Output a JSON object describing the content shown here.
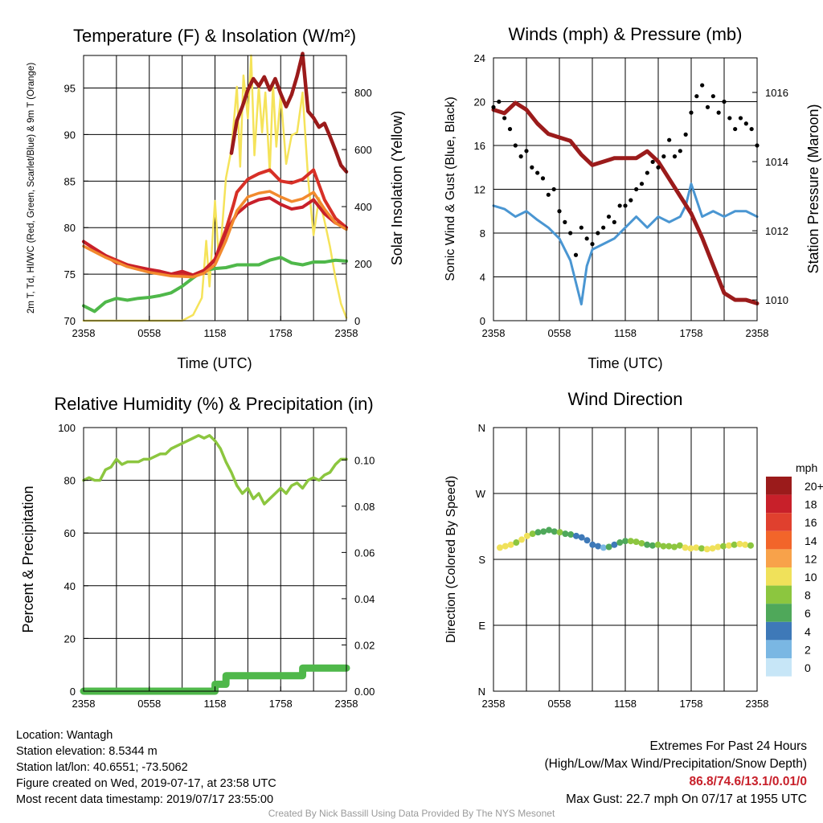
{
  "info": {
    "location": "Location: Wantagh",
    "elevation": "Station elevation: 8.5344 m",
    "latlon": "Station lat/lon: 40.6551; -73.5062",
    "created": "Figure created on Wed, 2019-07-17, at 23:58 UTC",
    "recent": "Most recent data timestamp: 2019/07/17 23:55:00"
  },
  "extremes": {
    "title": "Extremes For Past 24 Hours",
    "subtitle": "(High/Low/Max Wind/Precipitation/Snow Depth)",
    "values": "86.8/74.6/13.1/0.01/0",
    "gust": "Max Gust: 22.7 mph On 07/17 at 1955 UTC"
  },
  "credit": "Created By Nick Bassill Using Data Provided By The NYS Mesonet",
  "colors": {
    "temp_red": "#c8202a",
    "dewpoint_green": "#4fb84a",
    "heat_index_scarlet": "#d73027",
    "temp_9m_orange": "#f28a2e",
    "insolation_yellow": "#f5e35a",
    "wind_blue": "#4a96d2",
    "gust_black": "#000000",
    "pressure_maroon": "#9b1b1b",
    "rh_lightgreen": "#8cc63f",
    "precip_green": "#4fb84a"
  },
  "chart_data": [
    {
      "type": "line",
      "title": "Temperature (F) & Insolation (W/m²)",
      "xlabel": "Time (UTC)",
      "ylabel": "2m T, Td, HI/WC (Red, Green, Scarlet/Blue) & 9m T (Orange)",
      "ylabel2": "Solar Insolation (Yellow)",
      "x_ticks": [
        "2358",
        "0558",
        "1158",
        "1758",
        "2358"
      ],
      "y_ticks": [
        70,
        75,
        80,
        85,
        90,
        95
      ],
      "y2_ticks": [
        0,
        200,
        400,
        600,
        800
      ],
      "xlim": [
        0,
        24
      ],
      "ylim": [
        70,
        98.5
      ],
      "y2lim": [
        0,
        930
      ],
      "grid": true,
      "series": [
        {
          "name": "2m T (Red)",
          "axis": "left",
          "x": [
            0,
            1,
            2,
            3,
            4,
            5,
            6,
            7,
            8,
            9,
            10,
            11,
            12,
            13,
            14,
            15,
            16,
            17,
            18,
            19,
            20,
            21,
            22,
            23,
            24
          ],
          "y": [
            78.5,
            77.7,
            77.0,
            76.2,
            76.0,
            75.7,
            75.5,
            75.3,
            75.0,
            75.3,
            74.9,
            75.4,
            76.5,
            79.5,
            81.5,
            82.5,
            83.0,
            83.2,
            82.5,
            82.0,
            82.2,
            83.0,
            81.5,
            80.5,
            80.0
          ]
        },
        {
          "name": "HI/WC (Scarlet)",
          "axis": "left",
          "x": [
            0,
            2,
            4,
            6,
            8,
            10,
            11,
            12,
            13,
            13.7,
            14,
            15,
            16,
            17,
            18,
            19,
            20,
            21,
            22,
            23,
            24
          ],
          "y": [
            78.5,
            77.0,
            76.0,
            75.5,
            75.0,
            74.9,
            75.4,
            76.6,
            79.8,
            82.5,
            83.8,
            85.2,
            85.8,
            86.2,
            85.0,
            84.8,
            85.2,
            86.2,
            83.0,
            81.0,
            80.0
          ]
        },
        {
          "name": "9m T (Orange)",
          "axis": "left",
          "x": [
            0,
            2,
            4,
            6,
            8,
            10,
            11,
            12,
            13,
            14,
            15,
            16,
            17,
            18,
            19,
            20,
            21,
            22,
            23,
            24
          ],
          "y": [
            78.0,
            76.8,
            75.8,
            75.2,
            74.8,
            74.7,
            75.1,
            76.0,
            78.6,
            81.8,
            83.3,
            83.7,
            83.9,
            83.3,
            82.8,
            83.1,
            83.8,
            82.0,
            80.5,
            79.8
          ]
        },
        {
          "name": "Td (Green)",
          "axis": "left",
          "x": [
            0,
            1,
            2,
            3,
            4,
            5,
            6,
            7,
            8,
            9,
            10,
            11,
            12,
            13,
            14,
            15,
            16,
            17,
            18,
            19,
            20,
            21,
            22,
            23,
            24
          ],
          "y": [
            71.6,
            71.0,
            72.0,
            72.4,
            72.2,
            72.4,
            72.5,
            72.7,
            73.0,
            73.7,
            74.6,
            75.4,
            75.6,
            75.7,
            76.0,
            76.0,
            76.0,
            76.5,
            76.8,
            76.2,
            76.0,
            76.3,
            76.3,
            76.5,
            76.4
          ]
        },
        {
          "name": "Max HI (Maroon)",
          "axis": "left",
          "x": [
            13.5,
            14,
            14.5,
            15,
            15.5,
            16,
            16.5,
            17,
            17.5,
            18,
            18.5,
            19,
            19.5,
            20,
            20.5,
            21,
            21.5,
            22,
            22.5,
            23,
            23.5,
            24
          ],
          "y": [
            88.0,
            91.5,
            93.0,
            94.8,
            96.0,
            95.2,
            96.2,
            94.8,
            96.0,
            94.4,
            93.0,
            94.3,
            96.3,
            98.7,
            92.5,
            91.8,
            90.8,
            91.2,
            89.8,
            88.3,
            86.7,
            86.0
          ]
        },
        {
          "name": "Solar Insolation (Yellow)",
          "axis": "right",
          "x": [
            0,
            4,
            8,
            9,
            10,
            10.8,
            11.2,
            11.5,
            12,
            12.3,
            12.6,
            13,
            13.5,
            14,
            14.3,
            14.6,
            15,
            15.3,
            15.6,
            16,
            16.3,
            16.6,
            17,
            17.3,
            17.6,
            18,
            18.5,
            19,
            19.5,
            20,
            20.5,
            21,
            21.5,
            22,
            22.5,
            23,
            23.5,
            24
          ],
          "y": [
            0,
            0,
            0,
            0,
            20,
            80,
            280,
            120,
            420,
            240,
            300,
            500,
            600,
            820,
            540,
            860,
            710,
            930,
            580,
            820,
            660,
            800,
            520,
            830,
            610,
            790,
            550,
            650,
            660,
            800,
            500,
            300,
            430,
            350,
            260,
            150,
            60,
            10
          ]
        }
      ]
    },
    {
      "type": "line",
      "title": "Winds (mph) & Pressure (mb)",
      "xlabel": "Time (UTC)",
      "ylabel": "Sonic Wind & Gust (Blue, Black)",
      "ylabel2": "Station Pressure (Maroon)",
      "x_ticks": [
        "2358",
        "0558",
        "1158",
        "1758",
        "2358"
      ],
      "y_ticks": [
        0,
        4,
        8,
        12,
        16,
        20,
        24
      ],
      "y2_ticks": [
        1010,
        1012,
        1014,
        1016
      ],
      "xlim": [
        0,
        24
      ],
      "ylim": [
        0,
        24
      ],
      "y2lim": [
        1009.4,
        1017
      ],
      "grid": true,
      "series": [
        {
          "name": "Sonic Wind (Blue)",
          "axis": "left",
          "x": [
            0,
            1,
            2,
            3,
            4,
            5,
            6,
            7,
            7.5,
            8,
            8.5,
            9,
            10,
            11,
            12,
            13,
            14,
            15,
            16,
            17,
            17.5,
            18,
            18.5,
            19,
            20,
            21,
            22,
            23,
            24
          ],
          "y": [
            10.5,
            10.2,
            9.5,
            10.0,
            9.2,
            8.5,
            7.5,
            5.5,
            3.5,
            1.5,
            5.0,
            6.5,
            7.0,
            7.5,
            8.5,
            9.5,
            8.5,
            9.5,
            9.0,
            9.5,
            10.5,
            12.5,
            11.0,
            9.5,
            10.0,
            9.5,
            10.0,
            10.0,
            9.5
          ]
        },
        {
          "name": "Gust (Black)",
          "axis": "left",
          "x": [
            0,
            0.5,
            1,
            1.5,
            2,
            2.5,
            3,
            3.5,
            4,
            4.5,
            5,
            5.5,
            6,
            6.5,
            7,
            7.5,
            8,
            8.5,
            9,
            9.5,
            10,
            10.5,
            11,
            11.5,
            12,
            12.5,
            13,
            13.5,
            14,
            14.5,
            15,
            15.5,
            16,
            16.5,
            17,
            17.5,
            18,
            18.5,
            19,
            19.5,
            20,
            20.5,
            21,
            21.5,
            22,
            22.5,
            23,
            23.5,
            24
          ],
          "y": [
            19.5,
            20.0,
            18.5,
            17.5,
            16.0,
            15.0,
            15.5,
            14.0,
            13.5,
            13.0,
            11.5,
            12.0,
            10.0,
            9.0,
            8.0,
            6.0,
            8.5,
            7.5,
            7.0,
            8.0,
            8.5,
            9.5,
            9.0,
            10.5,
            10.5,
            11.0,
            12.0,
            12.5,
            13.5,
            14.5,
            14.0,
            15.0,
            16.5,
            15.0,
            15.5,
            17.0,
            19.0,
            20.5,
            21.5,
            19.5,
            20.5,
            19.0,
            20.0,
            18.5,
            17.5,
            18.5,
            18.0,
            17.5,
            16.0
          ]
        },
        {
          "name": "Station Pressure (Maroon)",
          "axis": "right",
          "x": [
            0,
            1,
            2,
            3,
            4,
            5,
            6,
            7,
            8,
            9,
            10,
            11,
            12,
            13,
            14,
            15,
            16,
            17,
            18,
            19,
            20,
            21,
            22,
            23,
            24
          ],
          "y": [
            1015.5,
            1015.4,
            1015.7,
            1015.5,
            1015.1,
            1014.8,
            1014.7,
            1014.6,
            1014.2,
            1013.9,
            1014.0,
            1014.1,
            1014.1,
            1014.1,
            1014.3,
            1014.0,
            1013.5,
            1013.0,
            1012.5,
            1011.8,
            1011.0,
            1010.2,
            1010.0,
            1010.0,
            1009.9
          ]
        }
      ]
    },
    {
      "type": "line",
      "title": "Relative Humidity (%) & Precipitation (in)",
      "xlabel": "",
      "ylabel": "Percent & Precipitation",
      "x_ticks": [
        "2358",
        "0558",
        "1158",
        "1758",
        "2358"
      ],
      "y_ticks": [
        0,
        20,
        40,
        60,
        80,
        100
      ],
      "y2_ticks": [
        "0.00",
        "0.02",
        "0.04",
        "0.06",
        "0.08",
        "0.10"
      ],
      "xlim": [
        0,
        24
      ],
      "ylim": [
        0,
        100
      ],
      "y2lim": [
        0,
        0.114
      ],
      "grid": true,
      "series": [
        {
          "name": "Relative Humidity",
          "axis": "left",
          "x": [
            0,
            0.5,
            1,
            1.5,
            2,
            2.5,
            3,
            3.5,
            4,
            4.5,
            5,
            5.5,
            6,
            6.5,
            7,
            7.5,
            8,
            8.5,
            9,
            9.5,
            10,
            10.5,
            11,
            11.5,
            12,
            12.5,
            13,
            13.5,
            14,
            14.5,
            15,
            15.5,
            16,
            16.5,
            17,
            17.5,
            18,
            18.5,
            19,
            19.5,
            20,
            20.5,
            21,
            21.5,
            22,
            22.5,
            23,
            23.5,
            24
          ],
          "y": [
            80,
            81,
            80,
            80,
            84,
            85,
            88,
            86,
            87,
            87,
            87,
            88,
            88,
            89,
            90,
            90,
            92,
            93,
            94,
            95,
            96,
            97,
            96,
            97,
            95,
            92,
            87,
            83,
            78,
            75,
            77,
            73,
            75,
            71,
            73,
            75,
            77,
            75,
            78,
            79,
            77,
            80,
            81,
            80,
            82,
            83,
            86,
            88,
            88
          ]
        },
        {
          "name": "Precipitation",
          "axis": "right",
          "x": [
            0,
            12,
            12.01,
            13,
            13.01,
            20,
            20.01,
            24
          ],
          "y": [
            0,
            0,
            0.003,
            0.003,
            0.0067,
            0.0067,
            0.01,
            0.01
          ]
        }
      ]
    },
    {
      "type": "scatter",
      "title": "Wind Direction",
      "ylabel": "Direction (Colored By Speed)",
      "x_ticks": [
        "2358",
        "0558",
        "1158",
        "1758",
        "2358"
      ],
      "y_ticks": [
        "N",
        "W",
        "S",
        "E",
        "N"
      ],
      "xlim": [
        0,
        24
      ],
      "ylim": [
        0,
        360
      ],
      "legend_title": "mph",
      "legend_labels": [
        "20+",
        "18",
        "16",
        "14",
        "12",
        "10",
        "8",
        "6",
        "4",
        "2",
        "0"
      ],
      "legend_colors": [
        "#9b1b1b",
        "#c8202a",
        "#e0402e",
        "#f2652a",
        "#f8a24a",
        "#f0e15a",
        "#8cc63f",
        "#4fa85a",
        "#3e79b8",
        "#7ab7e3",
        "#c7e6f7"
      ],
      "points_direction": [
        196,
        198,
        200,
        203,
        207,
        212,
        215,
        217,
        218,
        220,
        218,
        217,
        215,
        214,
        212,
        210,
        206,
        200,
        198,
        196,
        197,
        200,
        203,
        205,
        205,
        204,
        202,
        200,
        199,
        200,
        198,
        198,
        197,
        199,
        196,
        195,
        196,
        195,
        194,
        195,
        197,
        198,
        199,
        200,
        201,
        200,
        199
      ],
      "points_speed": [
        10,
        11,
        10,
        9,
        10,
        11,
        8,
        7,
        7,
        6,
        7,
        8,
        6,
        7,
        5,
        4,
        4,
        5,
        4,
        3,
        6,
        5,
        6,
        7,
        8,
        9,
        8,
        7,
        7,
        8,
        9,
        9,
        8,
        9,
        10,
        11,
        10,
        9,
        10,
        11,
        10,
        9,
        10,
        9,
        10,
        11,
        9
      ]
    }
  ]
}
